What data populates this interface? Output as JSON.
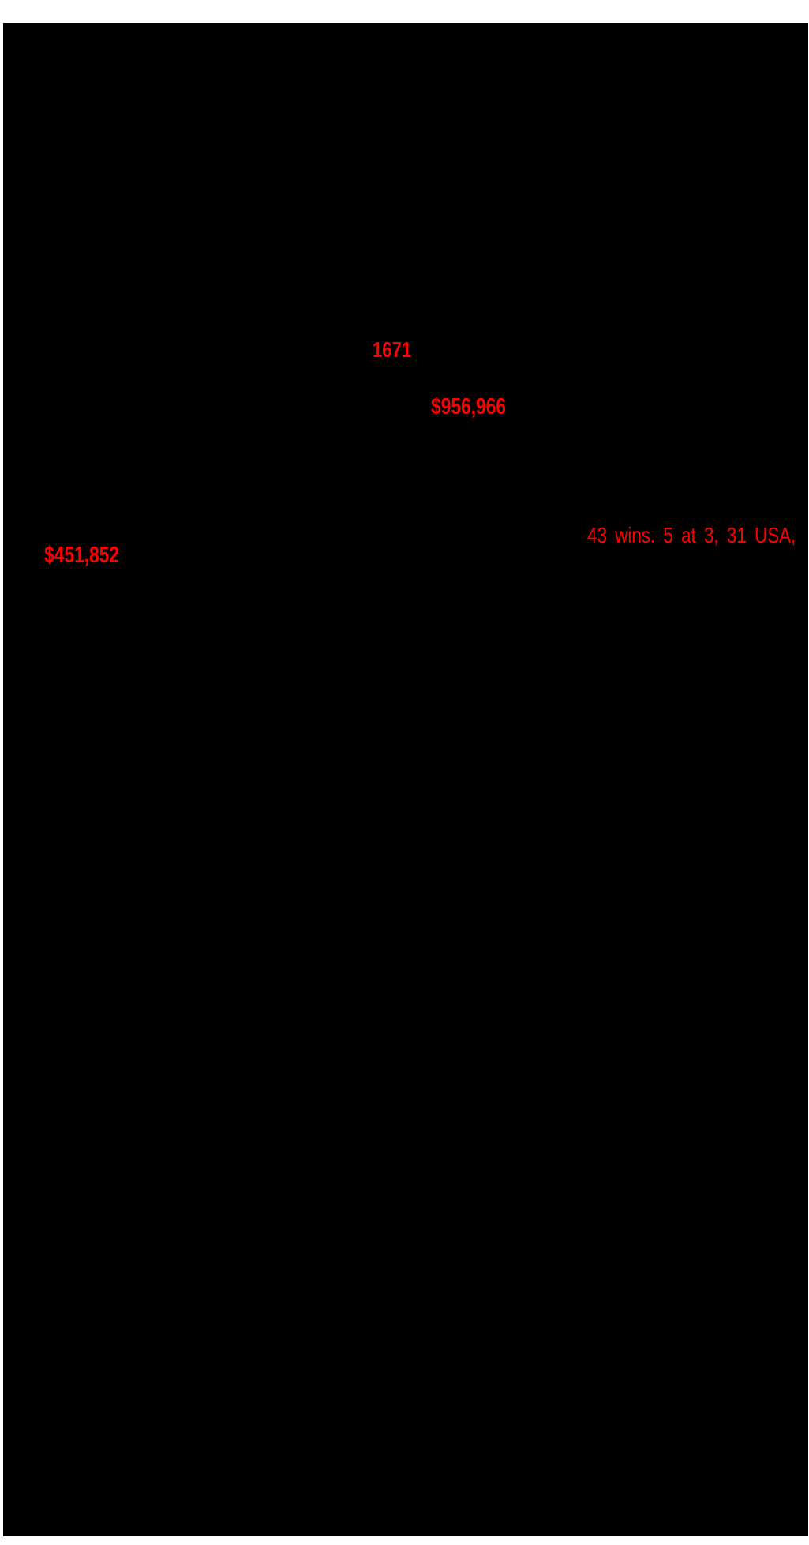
{
  "page": {
    "background_color": "#ffffff",
    "scan_color": "#000000",
    "ocr_text_color": "#ff0000",
    "ocr_words": [
      {
        "text": "1671"
      },
      {
        "text": "$956,966"
      },
      {
        "text": "$451,852"
      },
      {
        "text": "43 wins. 5 at 3, 31 USA,"
      }
    ]
  }
}
